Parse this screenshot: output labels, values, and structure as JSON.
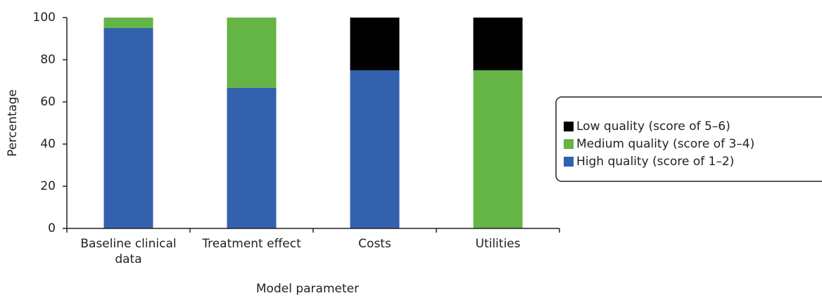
{
  "chart_data": {
    "type": "stacked_bar",
    "x_label": "Model parameter",
    "y_label": "Percentage",
    "categories": [
      "Baseline clinical data",
      "Treatment effect",
      "Costs",
      "Utilities"
    ],
    "series": [
      {
        "name": "High quality (score of 1–2)",
        "color": "#3361ae",
        "values": [
          95,
          66.7,
          75,
          0
        ]
      },
      {
        "name": "Medium quality (score of 3–4)",
        "color": "#65b446",
        "values": [
          5,
          33.3,
          0,
          75
        ]
      },
      {
        "name": "Low quality (score of 5–6)",
        "color": "#000000",
        "values": [
          0,
          0,
          25,
          25
        ]
      }
    ],
    "ylim": [
      0,
      100
    ],
    "yticks": [
      0,
      20,
      40,
      60,
      80,
      100
    ],
    "legend": "right"
  }
}
